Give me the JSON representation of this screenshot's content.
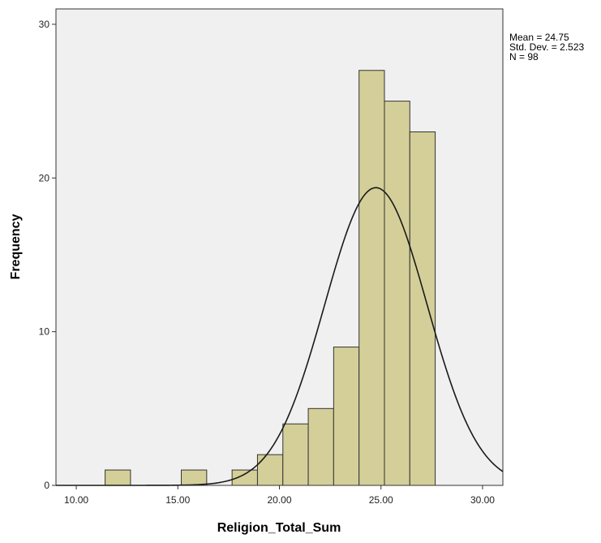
{
  "chart_data": {
    "type": "bar",
    "xlabel": "Religion_Total_Sum",
    "ylabel": "Frequency",
    "xlim": [
      9.0,
      31.0
    ],
    "ylim": [
      0,
      31
    ],
    "x_ticks": [
      {
        "value": 10,
        "label": "10.00"
      },
      {
        "value": 15,
        "label": "15.00"
      },
      {
        "value": 20,
        "label": "20.00"
      },
      {
        "value": 25,
        "label": "25.00"
      },
      {
        "value": 30,
        "label": "30.00"
      }
    ],
    "y_ticks": [
      {
        "value": 0,
        "label": "0"
      },
      {
        "value": 10,
        "label": "10"
      },
      {
        "value": 20,
        "label": "20"
      },
      {
        "value": 30,
        "label": "30"
      }
    ],
    "bins": [
      {
        "x0": 11.42,
        "x1": 12.67,
        "count": 1
      },
      {
        "x0": 15.17,
        "x1": 16.42,
        "count": 1
      },
      {
        "x0": 17.67,
        "x1": 18.92,
        "count": 1
      },
      {
        "x0": 18.92,
        "x1": 20.17,
        "count": 2
      },
      {
        "x0": 20.17,
        "x1": 21.42,
        "count": 4
      },
      {
        "x0": 21.42,
        "x1": 22.67,
        "count": 5
      },
      {
        "x0": 22.67,
        "x1": 23.92,
        "count": 9
      },
      {
        "x0": 23.92,
        "x1": 25.17,
        "count": 27
      },
      {
        "x0": 25.17,
        "x1": 26.42,
        "count": 25
      },
      {
        "x0": 26.42,
        "x1": 27.67,
        "count": 23
      }
    ],
    "normal_curve": {
      "mean": 24.75,
      "std_dev": 2.523,
      "n": 98,
      "bin_width": 1.25
    },
    "stats_lines": [
      "Mean = 24.75",
      "Std. Dev. = 2.523",
      "N = 98"
    ],
    "grid": false,
    "legend": "none",
    "colors": {
      "bar_fill": "#d4cf98",
      "bar_stroke": "#333333",
      "plot_background": "#f0f0f0",
      "curve": "#1a1a1a"
    }
  }
}
